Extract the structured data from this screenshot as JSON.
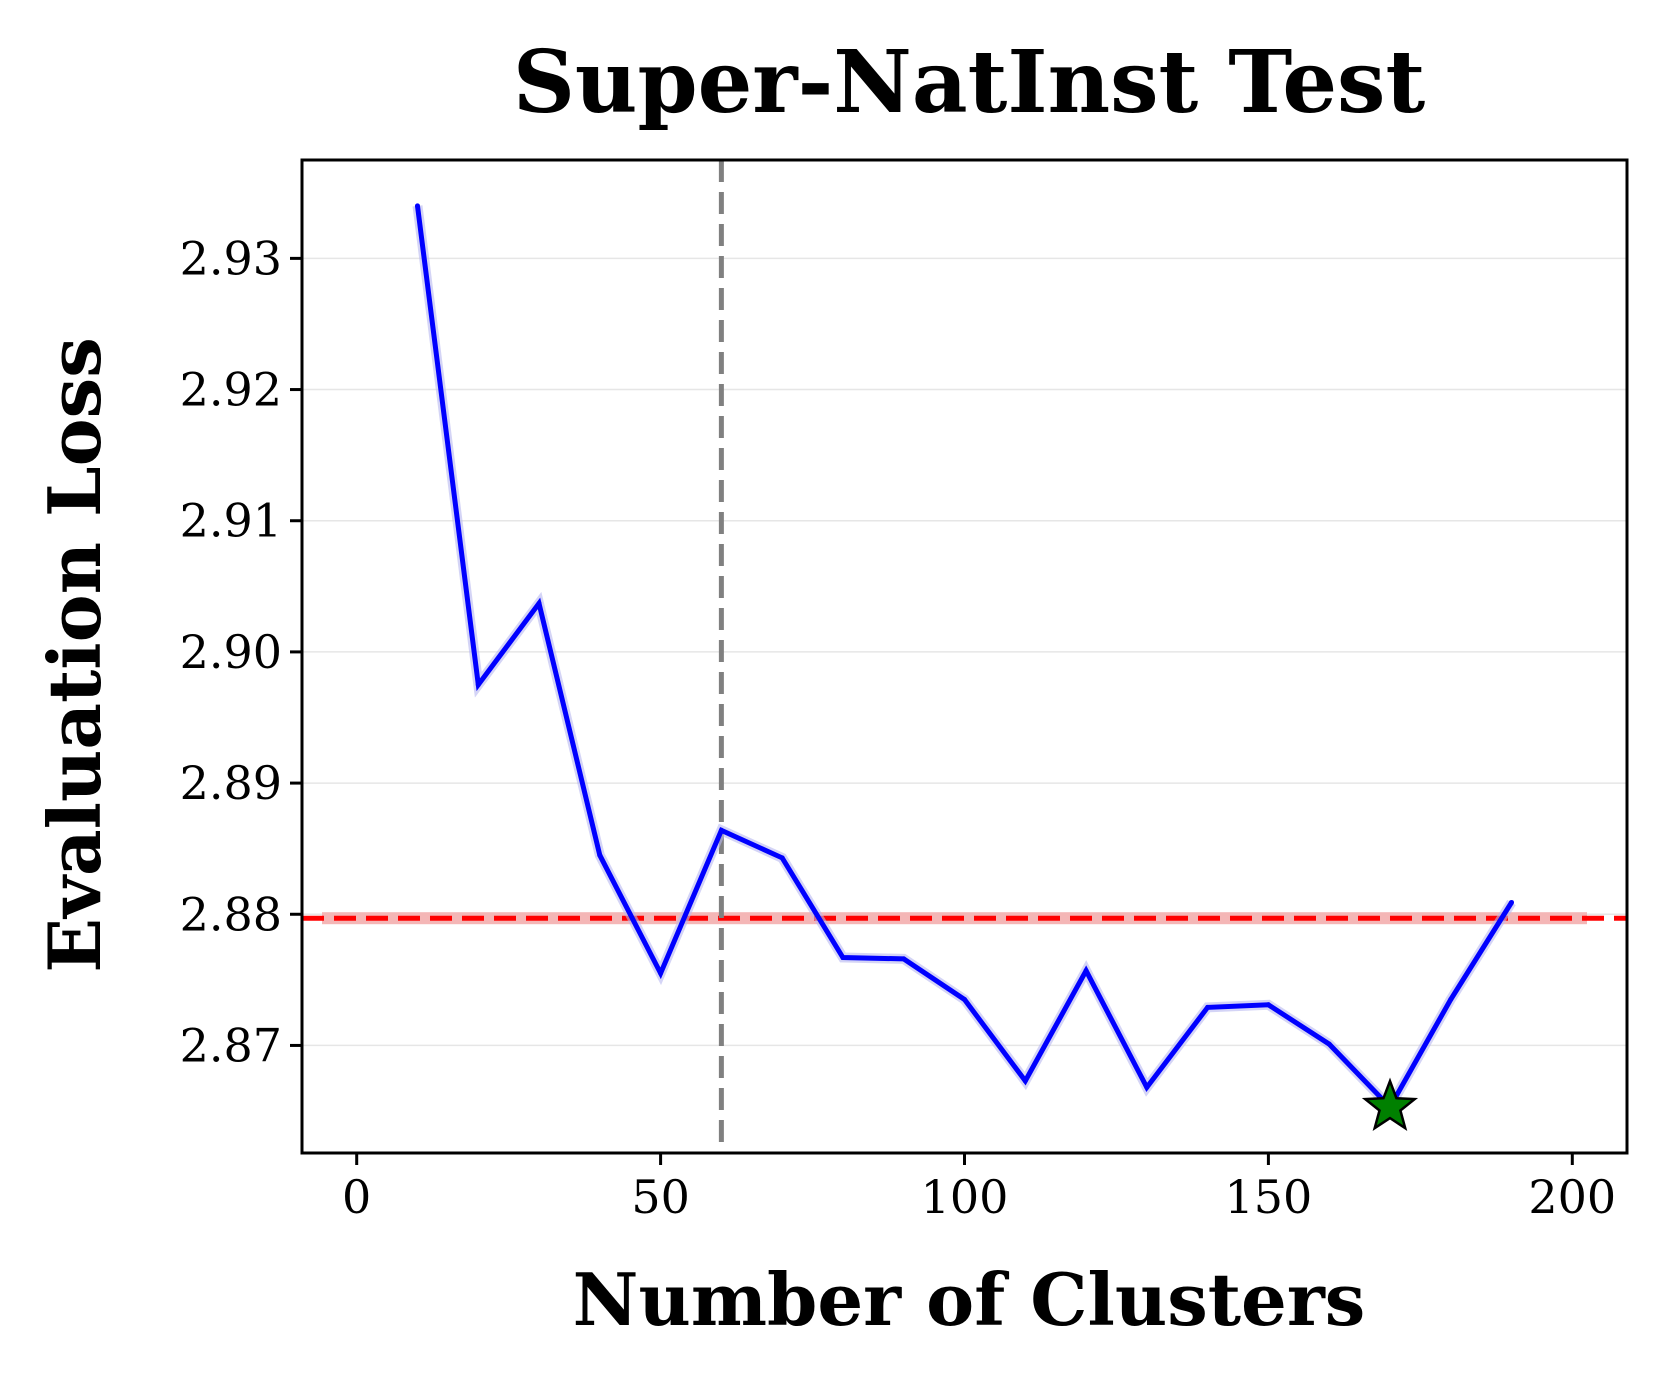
{
  "chart_data": {
    "type": "line",
    "title": "Super-NatInst Test",
    "xlabel": "Number of Clusters",
    "ylabel": "Evaluation Loss",
    "xlim": [
      -9,
      209
    ],
    "ylim": [
      2.8618,
      2.9375
    ],
    "x_ticks": [
      0,
      50,
      100,
      150,
      200
    ],
    "y_ticks": [
      2.87,
      2.88,
      2.89,
      2.9,
      2.91,
      2.92,
      2.93
    ],
    "x_tick_labels": [
      "0",
      "50",
      "100",
      "150",
      "200"
    ],
    "y_tick_labels": [
      "2.87",
      "2.88",
      "2.89",
      "2.90",
      "2.91",
      "2.92",
      "2.93"
    ],
    "grid": "horizontal",
    "series": [
      {
        "color": "#0000ff",
        "x": [
          10,
          20,
          30,
          40,
          50,
          60,
          70,
          80,
          90,
          100,
          110,
          120,
          130,
          140,
          150,
          160,
          170,
          180,
          190
        ],
        "y": [
          2.934,
          2.8975,
          2.9037,
          2.8845,
          2.8755,
          2.8864,
          2.8843,
          2.8767,
          2.8766,
          2.8735,
          2.8673,
          2.8757,
          2.8668,
          2.8729,
          2.8731,
          2.8701,
          2.8653,
          2.8735,
          2.8809
        ]
      }
    ],
    "reference_lines": [
      {
        "orientation": "horizontal",
        "value": 2.8797,
        "color": "#ff0000",
        "style": "dashed"
      },
      {
        "orientation": "vertical",
        "value": 60,
        "color": "#808080",
        "style": "dashed"
      }
    ],
    "marker": {
      "shape": "star",
      "x": 170,
      "y": 2.8653,
      "color": "#008000"
    }
  }
}
